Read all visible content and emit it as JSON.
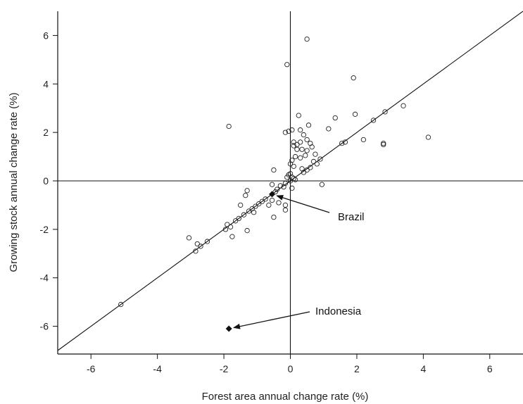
{
  "chart_data": {
    "type": "scatter",
    "xlabel": "Forest area annual change rate (%)",
    "ylabel": "Growing stock annual change rate (%)",
    "xlim": [
      -7,
      7
    ],
    "ylim": [
      -7,
      7
    ],
    "xticks": [
      "-6",
      "-4",
      "-2",
      "0",
      "2",
      "4",
      "6"
    ],
    "yticks": [
      "-6",
      "-4",
      "-2",
      "0",
      "2",
      "4",
      "6"
    ],
    "reference_lines": [
      "x = 0",
      "y = 0",
      "y = x"
    ],
    "grid": false,
    "points": [
      [
        0.5,
        5.85
      ],
      [
        -0.1,
        4.8
      ],
      [
        1.9,
        4.25
      ],
      [
        3.4,
        3.1
      ],
      [
        2.85,
        2.85
      ],
      [
        1.95,
        2.75
      ],
      [
        1.35,
        2.6
      ],
      [
        0.25,
        2.7
      ],
      [
        0.55,
        2.3
      ],
      [
        -1.85,
        2.25
      ],
      [
        2.5,
        2.5
      ],
      [
        -0.05,
        2.05
      ],
      [
        -0.15,
        2.0
      ],
      [
        0.05,
        2.1
      ],
      [
        0.3,
        2.1
      ],
      [
        1.15,
        2.15
      ],
      [
        4.15,
        1.8
      ],
      [
        2.2,
        1.7
      ],
      [
        1.65,
        1.6
      ],
      [
        1.55,
        1.55
      ],
      [
        2.8,
        1.55
      ],
      [
        2.8,
        1.5
      ],
      [
        0.4,
        1.9
      ],
      [
        0.5,
        1.7
      ],
      [
        0.6,
        1.55
      ],
      [
        0.65,
        1.4
      ],
      [
        0.1,
        1.6
      ],
      [
        0.2,
        1.5
      ],
      [
        0.3,
        1.6
      ],
      [
        0.35,
        1.3
      ],
      [
        0.5,
        1.25
      ],
      [
        0.45,
        1.05
      ],
      [
        0.75,
        1.1
      ],
      [
        0.3,
        0.95
      ],
      [
        0.2,
        1.3
      ],
      [
        0.1,
        1.45
      ],
      [
        0.15,
        1.0
      ],
      [
        0.05,
        0.85
      ],
      [
        0.0,
        0.7
      ],
      [
        0.1,
        0.6
      ],
      [
        0.6,
        0.55
      ],
      [
        0.5,
        0.45
      ],
      [
        0.35,
        0.5
      ],
      [
        0.4,
        0.35
      ],
      [
        0.7,
        0.8
      ],
      [
        0.9,
        0.9
      ],
      [
        0.8,
        0.7
      ],
      [
        0.0,
        0.3
      ],
      [
        0.05,
        0.15
      ],
      [
        0.1,
        0.1
      ],
      [
        0.0,
        0.0
      ],
      [
        -0.05,
        0.25
      ],
      [
        -0.1,
        0.15
      ],
      [
        0.15,
        0.05
      ],
      [
        0.95,
        -0.15
      ],
      [
        0.05,
        -0.3
      ],
      [
        -0.15,
        -0.1
      ],
      [
        -0.2,
        -0.25
      ],
      [
        -0.3,
        -0.2
      ],
      [
        -0.4,
        -0.35
      ],
      [
        -0.45,
        -0.45
      ],
      [
        -0.5,
        0.45
      ],
      [
        -0.55,
        -0.15
      ],
      [
        -0.35,
        -0.9
      ],
      [
        -0.55,
        -0.8
      ],
      [
        -0.65,
        -1.0
      ],
      [
        -0.15,
        -1.0
      ],
      [
        -0.15,
        -1.2
      ],
      [
        -0.5,
        -1.5
      ],
      [
        -0.75,
        -0.75
      ],
      [
        -0.85,
        -0.85
      ],
      [
        -0.95,
        -0.95
      ],
      [
        -1.05,
        -1.05
      ],
      [
        -1.15,
        -1.15
      ],
      [
        -1.3,
        -0.4
      ],
      [
        -1.35,
        -0.6
      ],
      [
        -1.5,
        -1.0
      ],
      [
        -1.25,
        -1.25
      ],
      [
        -1.4,
        -1.4
      ],
      [
        -1.55,
        -1.55
      ],
      [
        -1.65,
        -1.65
      ],
      [
        -1.9,
        -1.8
      ],
      [
        -1.8,
        -1.9
      ],
      [
        -1.95,
        -2.0
      ],
      [
        -1.75,
        -2.3
      ],
      [
        -1.3,
        -2.05
      ],
      [
        -1.1,
        -1.3
      ],
      [
        -2.5,
        -2.5
      ],
      [
        -2.7,
        -2.7
      ],
      [
        -2.8,
        -2.6
      ],
      [
        -2.85,
        -2.9
      ],
      [
        -3.05,
        -2.35
      ],
      [
        -5.1,
        -5.1
      ]
    ],
    "highlighted": [
      {
        "name": "Brazil",
        "x": -0.55,
        "y": -0.55
      },
      {
        "name": "Indonesia",
        "x": -1.85,
        "y": -6.1
      }
    ],
    "annotations": [
      {
        "text": "Brazil",
        "target": "Brazil"
      },
      {
        "text": "Indonesia",
        "target": "Indonesia"
      }
    ]
  }
}
